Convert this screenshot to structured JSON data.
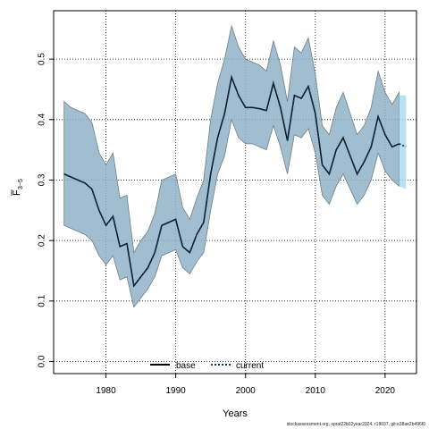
{
  "chart_data": {
    "type": "line",
    "xlabel": "Years",
    "ylabel_main": "F",
    "ylabel_sub": "3−5",
    "xlim": [
      1972.5,
      2024.5
    ],
    "ylim": [
      -0.02,
      0.58
    ],
    "xticks": [
      1980,
      1990,
      2000,
      2010,
      2020
    ],
    "yticks": [
      0.0,
      0.1,
      0.2,
      0.3,
      0.4,
      0.5
    ],
    "ytick_labels": [
      "0.0",
      "0.1",
      "0.2",
      "0.3",
      "0.4",
      "0.5"
    ],
    "grid": true,
    "legend_position": "bottom-left",
    "legend": [
      {
        "label": "base",
        "style": "solid",
        "color": "#000000"
      },
      {
        "label": "current",
        "style": "dotted",
        "color": "#0b3a5c"
      }
    ],
    "years": [
      1974,
      1975,
      1976,
      1977,
      1978,
      1979,
      1980,
      1981,
      1982,
      1983,
      1984,
      1985,
      1986,
      1987,
      1988,
      1989,
      1990,
      1991,
      1992,
      1993,
      1994,
      1995,
      1996,
      1997,
      1998,
      1999,
      2000,
      2001,
      2002,
      2003,
      2004,
      2005,
      2006,
      2007,
      2008,
      2009,
      2010,
      2011,
      2012,
      2013,
      2014,
      2015,
      2016,
      2017,
      2018,
      2019,
      2020,
      2021,
      2022
    ],
    "series": [
      {
        "name": "base",
        "values": [
          0.31,
          0.305,
          0.3,
          0.295,
          0.285,
          0.25,
          0.225,
          0.24,
          0.19,
          0.195,
          0.125,
          0.14,
          0.155,
          0.18,
          0.225,
          0.23,
          0.235,
          0.19,
          0.18,
          0.21,
          0.23,
          0.31,
          0.37,
          0.41,
          0.47,
          0.44,
          0.42,
          0.42,
          0.418,
          0.415,
          0.46,
          0.42,
          0.365,
          0.44,
          0.435,
          0.455,
          0.41,
          0.325,
          0.31,
          0.35,
          0.37,
          0.34,
          0.31,
          0.33,
          0.355,
          0.405,
          0.375,
          0.355,
          0.36
        ],
        "lower": [
          0.225,
          0.22,
          0.215,
          0.21,
          0.2,
          0.175,
          0.16,
          0.175,
          0.135,
          0.14,
          0.09,
          0.105,
          0.12,
          0.14,
          0.175,
          0.18,
          0.185,
          0.155,
          0.145,
          0.165,
          0.18,
          0.25,
          0.31,
          0.34,
          0.4,
          0.37,
          0.36,
          0.36,
          0.355,
          0.35,
          0.39,
          0.355,
          0.31,
          0.375,
          0.37,
          0.385,
          0.345,
          0.275,
          0.26,
          0.29,
          0.31,
          0.285,
          0.26,
          0.275,
          0.3,
          0.345,
          0.315,
          0.3,
          0.29
        ],
        "upper": [
          0.43,
          0.42,
          0.415,
          0.41,
          0.395,
          0.345,
          0.325,
          0.345,
          0.27,
          0.275,
          0.18,
          0.2,
          0.215,
          0.245,
          0.3,
          0.305,
          0.31,
          0.255,
          0.235,
          0.27,
          0.3,
          0.4,
          0.46,
          0.5,
          0.555,
          0.52,
          0.5,
          0.495,
          0.49,
          0.48,
          0.53,
          0.49,
          0.43,
          0.52,
          0.51,
          0.535,
          0.475,
          0.39,
          0.375,
          0.42,
          0.445,
          0.41,
          0.375,
          0.39,
          0.42,
          0.48,
          0.445,
          0.425,
          0.445
        ]
      },
      {
        "name": "current",
        "years": [
          2022,
          2023
        ],
        "values": [
          0.36,
          0.355
        ],
        "lower": [
          0.29,
          0.285
        ],
        "upper": [
          0.44,
          0.44
        ]
      }
    ],
    "colors": {
      "band": "#8fb3c8",
      "band_edge": "#6f7f88",
      "current_band": "#a6d8f0",
      "current_line": "#0b3a5c"
    }
  },
  "footer": "stockassessment.org, sprat22b32year2024, r18037, git:e38ae2b496f0"
}
